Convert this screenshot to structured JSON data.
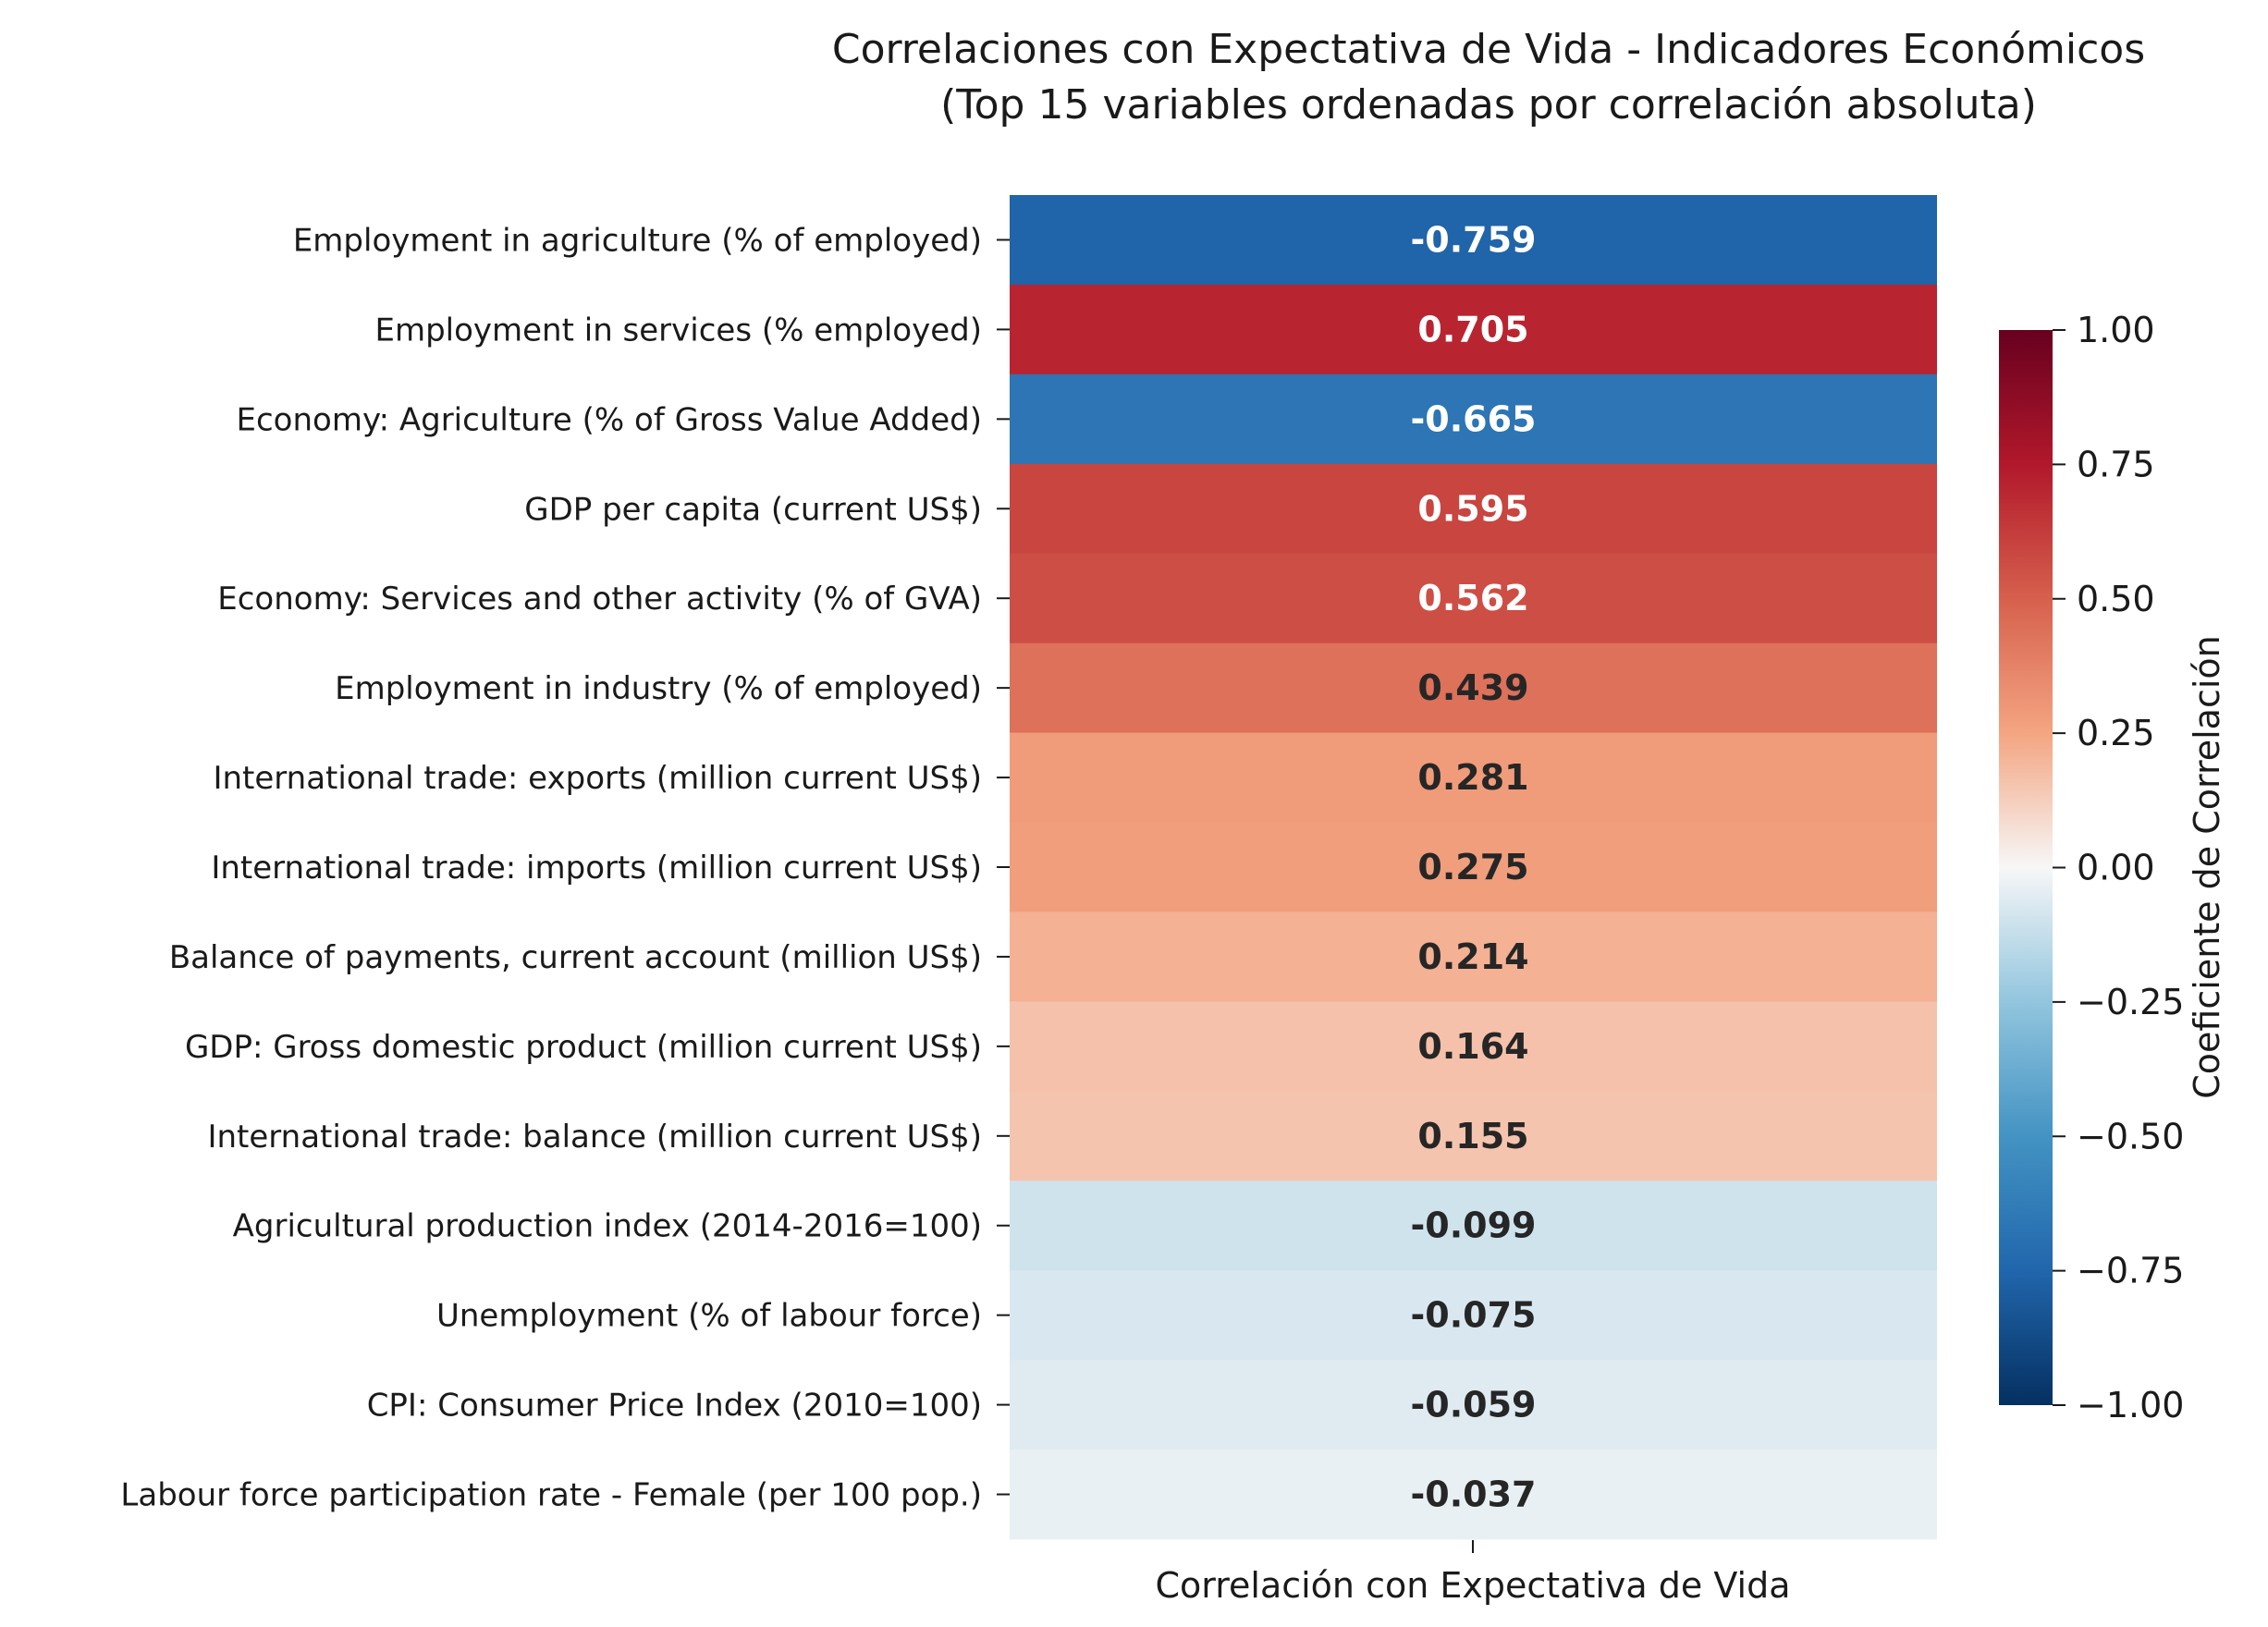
{
  "chart_data": {
    "type": "heatmap",
    "title": "Correlaciones con Expectativa de Vida - Indicadores Económicos",
    "subtitle": "(Top 15 variables ordenadas por correlación absoluta)",
    "xlabel": "Correlación con Expectativa de Vida",
    "colorbar_label": "Coeficiente de Correlación",
    "colorbar_range": [
      -1.0,
      1.0
    ],
    "colorbar_ticks": [
      "1.00",
      "0.75",
      "0.50",
      "0.25",
      "0.00",
      "−0.25",
      "−0.50",
      "−0.75",
      "−1.00"
    ],
    "colormap": "RdBu_r",
    "rows": [
      {
        "label": "Employment in agriculture (% of employed)",
        "value": -0.759,
        "text": "-0.759"
      },
      {
        "label": "Employment in services (% employed)",
        "value": 0.705,
        "text": "0.705"
      },
      {
        "label": "Economy: Agriculture (% of Gross Value Added)",
        "value": -0.665,
        "text": "-0.665"
      },
      {
        "label": "GDP per capita (current US$)",
        "value": 0.595,
        "text": "0.595"
      },
      {
        "label": "Economy: Services and other activity (% of GVA)",
        "value": 0.562,
        "text": "0.562"
      },
      {
        "label": "Employment in industry (% of employed)",
        "value": 0.439,
        "text": "0.439"
      },
      {
        "label": "International trade: exports (million current US$)",
        "value": 0.281,
        "text": "0.281"
      },
      {
        "label": "International trade: imports (million current US$)",
        "value": 0.275,
        "text": "0.275"
      },
      {
        "label": "Balance of payments, current account (million US$)",
        "value": 0.214,
        "text": "0.214"
      },
      {
        "label": "GDP: Gross domestic product (million current US$)",
        "value": 0.164,
        "text": "0.164"
      },
      {
        "label": "International trade: balance (million current US$)",
        "value": 0.155,
        "text": "0.155"
      },
      {
        "label": "Agricultural production index (2014-2016=100)",
        "value": -0.099,
        "text": "-0.099"
      },
      {
        "label": "Unemployment (% of labour force)",
        "value": -0.075,
        "text": "-0.075"
      },
      {
        "label": "CPI: Consumer Price Index (2010=100)",
        "value": -0.059,
        "text": "-0.059"
      },
      {
        "label": "Labour force participation rate - Female (per 100 pop.)",
        "value": -0.037,
        "text": "-0.037"
      }
    ]
  }
}
